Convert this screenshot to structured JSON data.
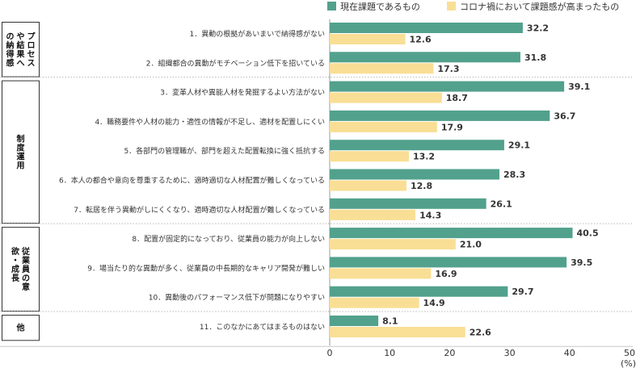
{
  "chart_data": {
    "type": "bar",
    "orientation": "horizontal",
    "colors": {
      "current": "#52a18c",
      "corona": "#f9de95"
    },
    "legend_placement": "top-right",
    "xlim": [
      0,
      50
    ],
    "x_ticks": [
      "0",
      "10",
      "20",
      "30",
      "40",
      "50"
    ],
    "x_unit": "(%)",
    "series": [
      {
        "name": "現在課題であるもの",
        "key": "current"
      },
      {
        "name": "コロナ禍において課題感が高まったもの",
        "key": "corona"
      }
    ],
    "groups": [
      {
        "label": "プロセスや結果への納得感",
        "start": 0,
        "end": 1
      },
      {
        "label": "制度運用",
        "start": 2,
        "end": 6
      },
      {
        "label": "従業員の意欲・成長",
        "start": 7,
        "end": 9
      },
      {
        "label": "他",
        "start": 10,
        "end": 10
      }
    ],
    "categories": [
      "1．異動の根拠があいまいで納得感がない",
      "2．組織都合の異動がモチベーション低下を招いている",
      "3．変革人材や異能人材を発掘するよい方法がない",
      "4．職務要件や人材の能力・適性の情報が不足し、適材を配置しにくい",
      "5．各部門の管理職が、部門を超えた配置転換に強く抵抗する",
      "6．本人の都合や意向を尊重するために、適時適切な人材配置が難しくなっている",
      "7．転居を伴う異動がしにくくなり、適時適切な人材配置が難しくなっている",
      "8．配置が固定的になっており、従業員の能力が向上しない",
      "9．場当たり的な異動が多く、従業員の中長期的なキャリア開発が難しい",
      "10．異動後のパフォーマンス低下が問題になりやすい",
      "11．このなかにあてはまるものはない"
    ],
    "values": {
      "current": [
        32.2,
        31.8,
        39.1,
        36.7,
        29.1,
        28.3,
        26.1,
        40.5,
        39.5,
        29.7,
        8.1
      ],
      "corona": [
        12.6,
        17.3,
        18.7,
        17.9,
        13.2,
        12.8,
        14.3,
        21.0,
        16.9,
        14.9,
        22.6
      ]
    }
  }
}
